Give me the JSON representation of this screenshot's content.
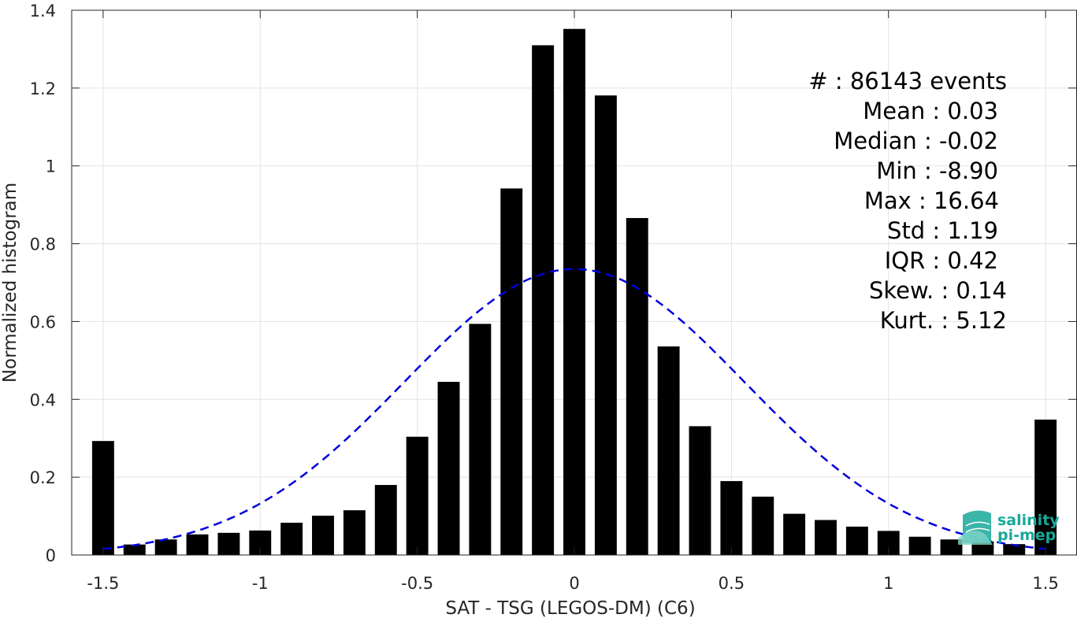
{
  "chart_data": {
    "type": "bar",
    "xlabel": "SAT - TSG (LEGOS-DM) (C6)",
    "ylabel": "Normalized histogram",
    "xlim": [
      -1.6,
      1.6
    ],
    "ylim": [
      0,
      1.4
    ],
    "xticks": [
      -1.5,
      -1,
      -0.5,
      0,
      0.5,
      1,
      1.5
    ],
    "xtick_labels": [
      "-1.5",
      "-1",
      "-0.5",
      "0",
      "0.5",
      "1",
      "1.5"
    ],
    "yticks": [
      0,
      0.2,
      0.4,
      0.6,
      0.8,
      1,
      1.2,
      1.4
    ],
    "ytick_labels": [
      "0",
      "0.2",
      "0.4",
      "0.6",
      "0.8",
      "1",
      "1.2",
      "1.4"
    ],
    "grid": true,
    "bar_color": "#000000",
    "bin_width": 0.1,
    "x": [
      -1.5,
      -1.4,
      -1.3,
      -1.2,
      -1.1,
      -1.0,
      -0.9,
      -0.8,
      -0.7,
      -0.6,
      -0.5,
      -0.4,
      -0.3,
      -0.2,
      -0.1,
      0.0,
      0.1,
      0.2,
      0.3,
      0.4,
      0.5,
      0.6,
      0.7,
      0.8,
      0.9,
      1.0,
      1.1,
      1.2,
      1.3,
      1.4,
      1.5
    ],
    "values": [
      0.293,
      0.027,
      0.04,
      0.053,
      0.057,
      0.063,
      0.083,
      0.101,
      0.115,
      0.18,
      0.304,
      0.445,
      0.594,
      0.942,
      1.31,
      1.352,
      1.181,
      0.866,
      0.536,
      0.331,
      0.19,
      0.15,
      0.106,
      0.09,
      0.073,
      0.062,
      0.047,
      0.04,
      0.035,
      0.028,
      0.348
    ],
    "fit_curve": {
      "style": "dashed",
      "color": "#0000dd",
      "mean": 0.0,
      "std": 0.54,
      "peak": 0.735,
      "x_range": [
        -1.5,
        1.5
      ]
    },
    "stats": [
      {
        "label": "#  : 86143 events"
      },
      {
        "label": "Mean : 0.03"
      },
      {
        "label": "Median : -0.02"
      },
      {
        "label": "Min : -8.90"
      },
      {
        "label": "Max : 16.64"
      },
      {
        "label": "Std : 1.19"
      },
      {
        "label": "IQR : 0.42"
      },
      {
        "label": "Skew. : 0.14"
      },
      {
        "label": "Kurt. : 5.12"
      }
    ]
  },
  "logo": {
    "line1": "salinity",
    "line2": "pi-mep",
    "icon": "salinity-wave-logo-icon",
    "color": "#1aa89a"
  }
}
